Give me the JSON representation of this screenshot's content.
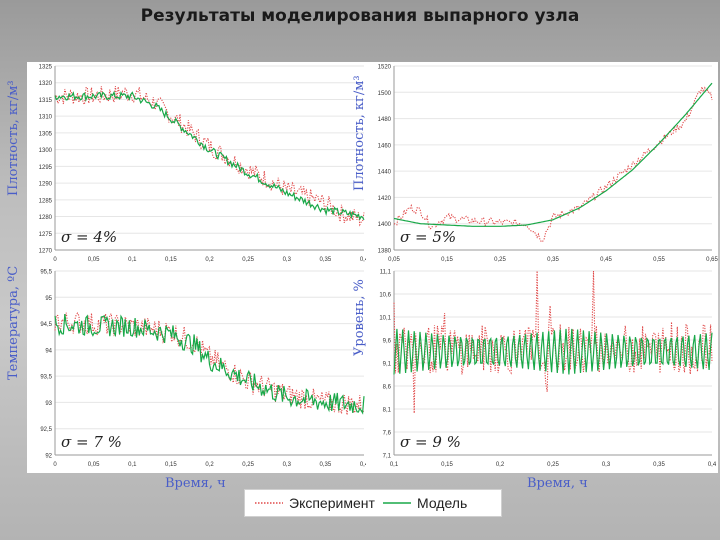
{
  "title": "Результаты моделирования выпарного узла",
  "labels": {
    "y_density": "Плотность, кг/м³",
    "y_temperature": "Температура, ºС",
    "y_level": "Уровень, %",
    "x_time": "Время, ч"
  },
  "legend": [
    {
      "label": "Эксперимент",
      "color": "#e04848",
      "style": "dotted"
    },
    {
      "label": "Модель",
      "color": "#18a848",
      "style": "solid"
    }
  ],
  "chart_data": [
    {
      "type": "line",
      "id": "density-1",
      "ylabel": "Плотность, кг/м³",
      "xlabel": "",
      "xlim": [
        0,
        0.4
      ],
      "ylim": [
        1270,
        1325
      ],
      "xticks": [
        "0",
        "0,05",
        "0,1",
        "0,15",
        "0,2",
        "0,25",
        "0,3",
        "0,35",
        "0,4"
      ],
      "yticks": [
        "1270",
        "1275",
        "1280",
        "1285",
        "1290",
        "1295",
        "1300",
        "1305",
        "1310",
        "1315",
        "1320",
        "1325"
      ],
      "annotation": "σ = 4%",
      "noise": {
        "experiment": 2.8,
        "model": 1.2
      },
      "series": [
        {
          "name": "Эксперимент",
          "x": [
            0,
            0.05,
            0.1,
            0.13,
            0.2,
            0.25,
            0.3,
            0.35,
            0.37,
            0.4
          ],
          "y": [
            1316,
            1316,
            1317,
            1314,
            1301,
            1294,
            1288,
            1284,
            1281,
            1279
          ]
        },
        {
          "name": "Модель",
          "x": [
            0,
            0.05,
            0.1,
            0.13,
            0.2,
            0.25,
            0.3,
            0.35,
            0.4
          ],
          "y": [
            1316,
            1316,
            1316,
            1313,
            1300,
            1293,
            1287,
            1282,
            1280
          ]
        }
      ]
    },
    {
      "type": "line",
      "id": "density-2",
      "ylabel": "Плотность, кг/м³",
      "xlabel": "",
      "xlim": [
        0.05,
        0.65
      ],
      "ylim": [
        1380,
        1520
      ],
      "xticks": [
        "0,05",
        "0,15",
        "0,25",
        "0,35",
        "0,45",
        "0,55",
        "0,65"
      ],
      "yticks": [
        "1380",
        "1400",
        "1420",
        "1440",
        "1460",
        "1480",
        "1500",
        "1520"
      ],
      "annotation": "σ = 5%",
      "noise": {
        "experiment": 3,
        "model": 0
      },
      "series": [
        {
          "name": "Эксперимент",
          "x": [
            0.05,
            0.08,
            0.1,
            0.12,
            0.15,
            0.2,
            0.25,
            0.3,
            0.33,
            0.35,
            0.4,
            0.45,
            0.5,
            0.55,
            0.6,
            0.63,
            0.65
          ],
          "y": [
            1400,
            1412,
            1410,
            1398,
            1405,
            1402,
            1401,
            1400,
            1388,
            1405,
            1412,
            1428,
            1445,
            1462,
            1478,
            1503,
            1496
          ]
        },
        {
          "name": "Модель",
          "x": [
            0.05,
            0.1,
            0.15,
            0.2,
            0.25,
            0.3,
            0.35,
            0.4,
            0.45,
            0.5,
            0.55,
            0.6,
            0.65
          ],
          "y": [
            1404,
            1400,
            1399,
            1398,
            1398,
            1399,
            1403,
            1412,
            1425,
            1441,
            1461,
            1483,
            1507
          ]
        }
      ]
    },
    {
      "type": "line",
      "id": "temperature",
      "ylabel": "Температура, ºС",
      "xlabel": "Время, ч",
      "xlim": [
        0,
        0.4
      ],
      "ylim": [
        92,
        95.5
      ],
      "xticks": [
        "0",
        "0,05",
        "0,1",
        "0,15",
        "0,2",
        "0,25",
        "0,3",
        "0,35",
        "0,4"
      ],
      "yticks": [
        "92",
        "92,5",
        "93",
        "93,5",
        "94",
        "94,5",
        "95",
        "95,5"
      ],
      "annotation": "σ = 7 %",
      "noise": {
        "experiment": 0.22,
        "model": 0.2
      },
      "series": [
        {
          "name": "Эксперимент",
          "x": [
            0,
            0.05,
            0.1,
            0.15,
            0.18,
            0.2,
            0.25,
            0.3,
            0.35,
            0.4
          ],
          "y": [
            94.55,
            94.5,
            94.45,
            94.35,
            94.15,
            93.85,
            93.4,
            93.15,
            93.0,
            92.95
          ]
        },
        {
          "name": "Модель",
          "x": [
            0,
            0.05,
            0.1,
            0.15,
            0.18,
            0.2,
            0.25,
            0.3,
            0.35,
            0.4
          ],
          "y": [
            94.5,
            94.45,
            94.45,
            94.3,
            94.1,
            93.8,
            93.4,
            93.1,
            93.0,
            92.95
          ]
        }
      ]
    },
    {
      "type": "line",
      "id": "level",
      "ylabel": "Уровень, %",
      "xlabel": "Время, ч",
      "xlim": [
        0.1,
        0.4
      ],
      "ylim": [
        7.1,
        11.1
      ],
      "xticks": [
        "0,1",
        "0,15",
        "0,2",
        "0,25",
        "0,3",
        "0,35",
        "0,4"
      ],
      "yticks": [
        "7,1",
        "7,6",
        "8,1",
        "8,6",
        "9,1",
        "9,6",
        "10,1",
        "10,6",
        "11,1"
      ],
      "annotation": "σ = 9 %",
      "oscillation": {
        "period": 0.0055,
        "mean": 9.35,
        "amplitude": 0.5
      },
      "series": [
        {
          "name": "Эксперимент",
          "x": [
            0.1,
            0.4
          ],
          "y": [
            9.4,
            9.4
          ]
        },
        {
          "name": "Модель",
          "x": [
            0.1,
            0.4
          ],
          "y": [
            9.35,
            9.35
          ]
        }
      ]
    }
  ]
}
